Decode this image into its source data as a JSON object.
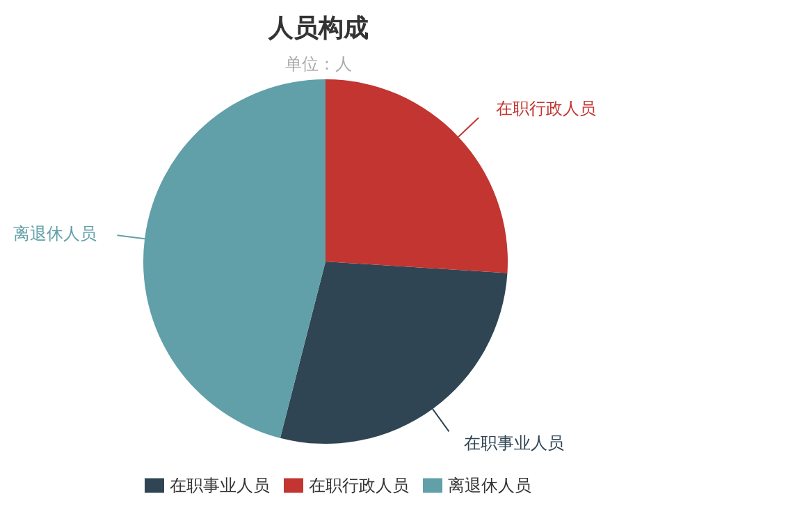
{
  "chart_data": {
    "type": "pie",
    "title": "人员构成",
    "subtitle": "单位：人",
    "categories": [
      "在职事业人员",
      "在职行政人员",
      "离退休人员"
    ],
    "values": [
      28,
      26,
      46
    ],
    "colors": [
      "#2f4554",
      "#c23531",
      "#61a0a8"
    ],
    "legend": "bottom"
  }
}
